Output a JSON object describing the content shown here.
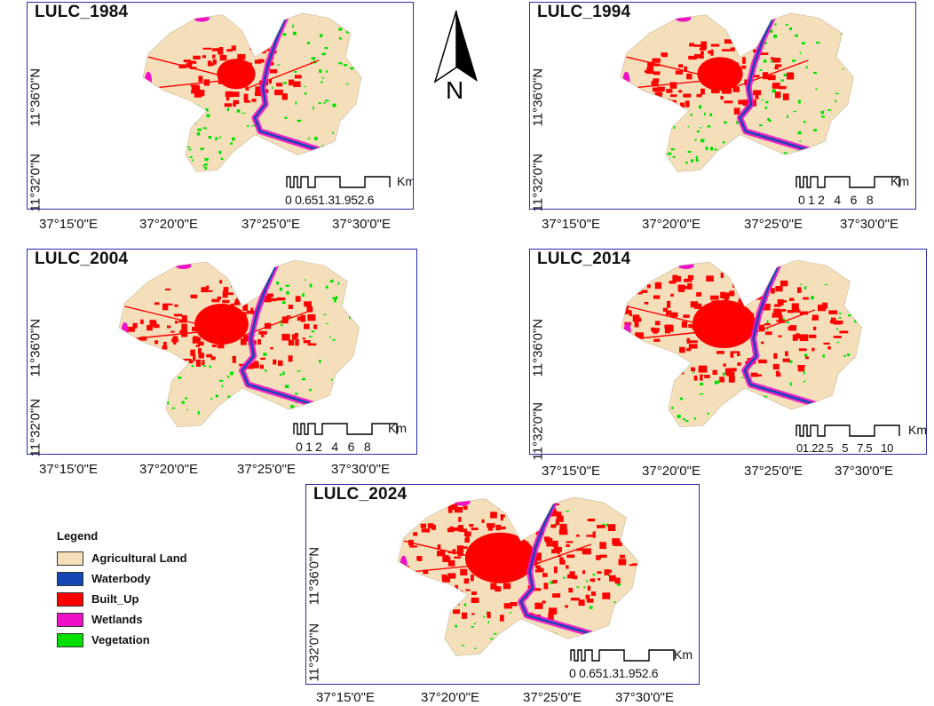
{
  "panels": [
    {
      "title": "LULC_1984",
      "scale_labels": "0 0.651.31.952.6",
      "scale_unit": "Km"
    },
    {
      "title": "LULC_1994",
      "scale_labels": "0 1 2   4   6   8",
      "scale_unit": "Km"
    },
    {
      "title": "LULC_2004",
      "scale_labels": "0 1 2   4   6   8",
      "scale_unit": "Km"
    },
    {
      "title": "LULC_2014",
      "scale_labels": "01.22.5   5   7.5   10",
      "scale_unit": "Km"
    },
    {
      "title": "LULC_2024",
      "scale_labels": "0 0.651.31.952.6",
      "scale_unit": "Km"
    }
  ],
  "lat_labels": [
    "11°36'0\"N",
    "11°32'0\"N"
  ],
  "lon_labels": [
    "37°15'0\"E",
    "37°20'0\"E",
    "37°25'0\"E",
    "37°30'0\"E"
  ],
  "north_arrow": {
    "label": "N",
    "icon": "north-arrow-icon"
  },
  "legend": {
    "title": "Legend",
    "items": [
      {
        "label": "Agricultural Land",
        "color": "#f5dfba"
      },
      {
        "label": "Waterbody",
        "color": "#1446b4"
      },
      {
        "label": "Built_Up",
        "color": "#fe0000"
      },
      {
        "label": "Wetlands",
        "color": "#f010c8"
      },
      {
        "label": "Vegetation",
        "color": "#00e000"
      }
    ]
  },
  "colors": {
    "frame": "#2a2aa8",
    "agricultural": "#f5dfba",
    "waterbody": "#1446b4",
    "built_up": "#fe0000",
    "wetlands": "#f010c8",
    "vegetation": "#00e000"
  }
}
